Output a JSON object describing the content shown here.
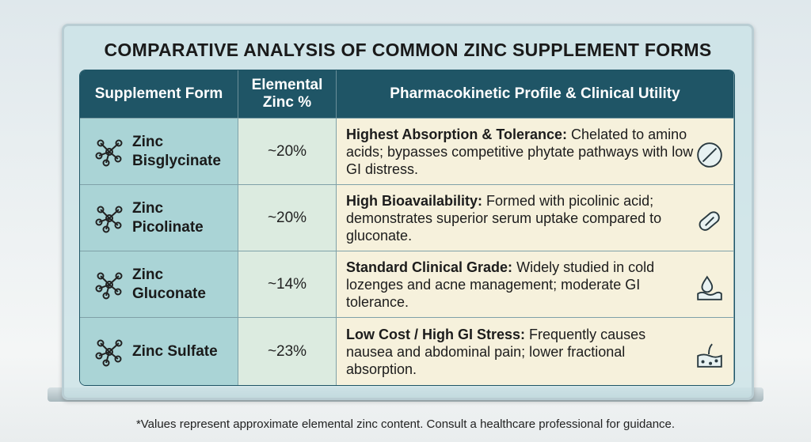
{
  "header": {
    "title": "COMPARATIVE ANALYSIS OF COMMON ZINC SUPPLEMENT FORMS"
  },
  "table": {
    "columns": [
      "Supplement Form",
      "Elemental Zinc %",
      "Pharmacokinetic Profile & Clinical Utility"
    ],
    "rows": [
      {
        "form": "Zinc Bisglycinate",
        "zinc": "~20%",
        "heading": "Highest Absorption & Tolerance:",
        "text": "Chelated to amino acids; bypasses competitive phytate pathways with low GI distress."
      },
      {
        "form": "Zinc Picolinate",
        "zinc": "~20%",
        "heading": "High Bioavailability:",
        "text": "Formed with picolinic acid; demonstrates superior serum uptake compared to gluconate."
      },
      {
        "form": "Zinc Gluconate",
        "zinc": "~14%",
        "heading": "Standard Clinical Grade:",
        "text": "Widely studied in cold lozenges and acne management; moderate GI tolerance."
      },
      {
        "form": "Zinc Sulfate",
        "zinc": "~23%",
        "heading": "Low Cost / High GI Stress:",
        "text": "Frequently causes nausea and abdominal pain; lower fractional absorption."
      }
    ]
  },
  "footnote": "*Values represent approximate elemental zinc content. Consult a healthcare professional for guidance."
}
